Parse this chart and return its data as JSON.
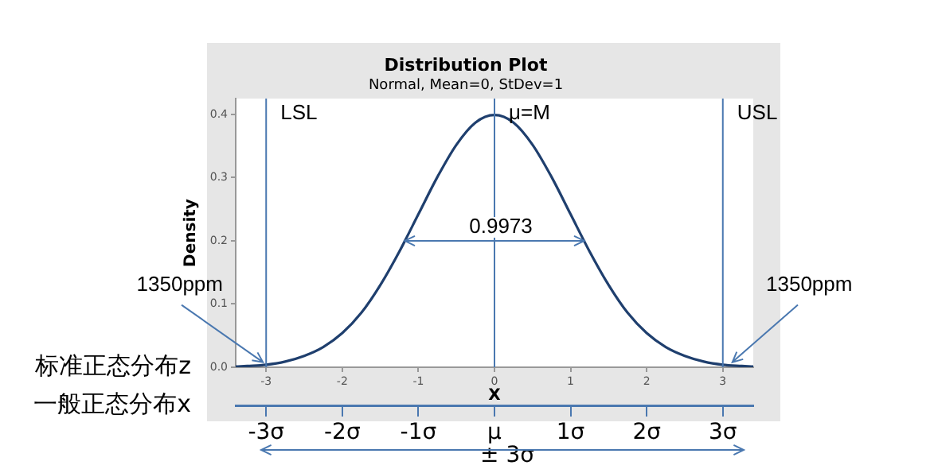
{
  "chart_data": {
    "type": "line",
    "title": "Distribution Plot",
    "subtitle": "Normal, Mean=0, StDev=1",
    "xlabel": "X",
    "ylabel": "Density",
    "x": [
      -3.4,
      -3.25,
      -3,
      -2.75,
      -2.5,
      -2.25,
      -2,
      -1.75,
      -1.5,
      -1.25,
      -1,
      -0.75,
      -0.5,
      -0.25,
      0,
      0.25,
      0.5,
      0.75,
      1,
      1.25,
      1.5,
      1.75,
      2,
      2.25,
      2.5,
      2.75,
      3,
      3.25,
      3.4
    ],
    "series": [
      {
        "color": "#1f3f6e",
        "values": [
          0.001,
          0.002,
          0.004,
          0.009,
          0.018,
          0.032,
          0.054,
          0.086,
          0.13,
          0.183,
          0.242,
          0.301,
          0.352,
          0.387,
          0.399,
          0.387,
          0.352,
          0.301,
          0.242,
          0.183,
          0.13,
          0.086,
          0.054,
          0.032,
          0.018,
          0.009,
          0.004,
          0.002,
          0.001
        ]
      }
    ],
    "xlim": [
      -3.4,
      3.4
    ],
    "xticks": [
      -3,
      -2,
      -1,
      0,
      1,
      2,
      3
    ],
    "ylim": [
      0,
      0.425
    ],
    "yticks": [
      {
        "value": 0,
        "label": "0.0"
      },
      0.1,
      0.2,
      0.3,
      0.4
    ],
    "x2lim": [
      -3.4,
      3.4
    ],
    "x2ticks": [
      {
        "value": -3,
        "label": "-3σ"
      },
      {
        "value": -2,
        "label": "-2σ"
      },
      {
        "value": -1,
        "label": "-1σ"
      },
      {
        "value": 0,
        "label": "μ"
      },
      {
        "value": 1,
        "label": "1σ"
      },
      {
        "value": 2,
        "label": "2σ"
      },
      {
        "value": 3,
        "label": "3σ"
      }
    ],
    "ref_lines": [
      {
        "axis": "x",
        "value": -3,
        "label": "LSL",
        "color": "#4a78b0"
      },
      {
        "axis": "x",
        "value": 0,
        "label": "μ=M",
        "color": "#4a78b0"
      },
      {
        "axis": "x",
        "value": 3,
        "label": "USL",
        "color": "#4a78b0"
      }
    ],
    "annotations": [
      {
        "text": "0.9973",
        "x": 0,
        "y": 0.2
      },
      {
        "text": "1350ppm",
        "x": -3,
        "y": 0.003
      },
      {
        "text": "1350ppm",
        "x": 3,
        "y": 0.003
      },
      "标准正态分布z",
      "一般正态分布x",
      "± 3σ"
    ],
    "marker": "none",
    "line_style": "solid",
    "grid": false,
    "legend": false
  }
}
